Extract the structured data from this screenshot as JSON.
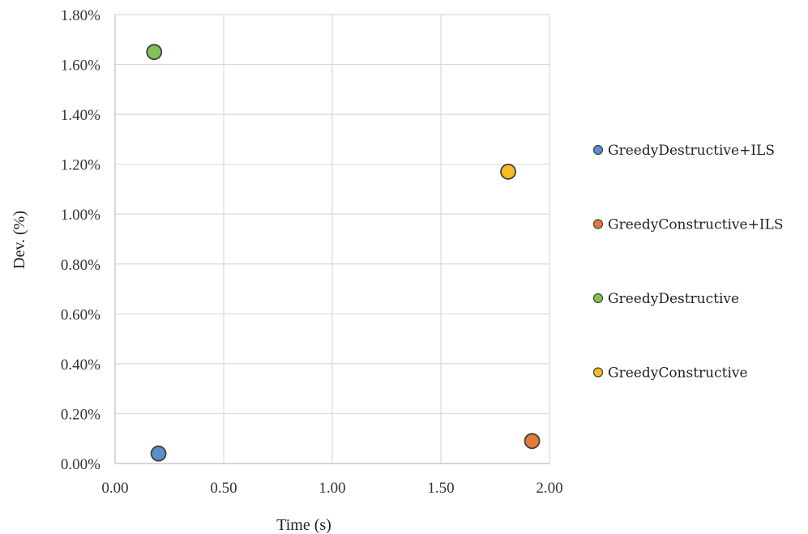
{
  "chart_data": {
    "type": "scatter",
    "title": "",
    "xlabel": "Time (s)",
    "ylabel": "Dev. (%)",
    "xlim": [
      0,
      2
    ],
    "ylim": [
      0,
      0.018
    ],
    "x_ticks": [
      {
        "value": 0,
        "label": "0.00"
      },
      {
        "value": 0.5,
        "label": "0.50"
      },
      {
        "value": 1.0,
        "label": "1.00"
      },
      {
        "value": 1.5,
        "label": "1.50"
      },
      {
        "value": 2.0,
        "label": "2.00"
      }
    ],
    "y_ticks": [
      {
        "value": 0,
        "label": "0.00%"
      },
      {
        "value": 0.002,
        "label": "0.20%"
      },
      {
        "value": 0.004,
        "label": "0.40%"
      },
      {
        "value": 0.006,
        "label": "0.60%"
      },
      {
        "value": 0.008,
        "label": "0.80%"
      },
      {
        "value": 0.01,
        "label": "1.00%"
      },
      {
        "value": 0.012,
        "label": "1.20%"
      },
      {
        "value": 0.014,
        "label": "1.40%"
      },
      {
        "value": 0.016,
        "label": "1.60%"
      },
      {
        "value": 0.018,
        "label": "1.80%"
      }
    ],
    "grid": true,
    "legend_position": "right",
    "series": [
      {
        "name": "GreedyDestructive+ILS",
        "color": "#5b8fc9",
        "points": [
          {
            "x": 0.2,
            "y": 0.0004
          }
        ]
      },
      {
        "name": "GreedyConstructive+ILS",
        "color": "#e67a35",
        "points": [
          {
            "x": 1.92,
            "y": 0.0009
          }
        ]
      },
      {
        "name": "GreedyDestructive",
        "color": "#84c155",
        "points": [
          {
            "x": 0.18,
            "y": 0.0165
          }
        ]
      },
      {
        "name": "GreedyConstructive",
        "color": "#f5bd22",
        "points": [
          {
            "x": 1.81,
            "y": 0.0117
          }
        ]
      }
    ]
  }
}
